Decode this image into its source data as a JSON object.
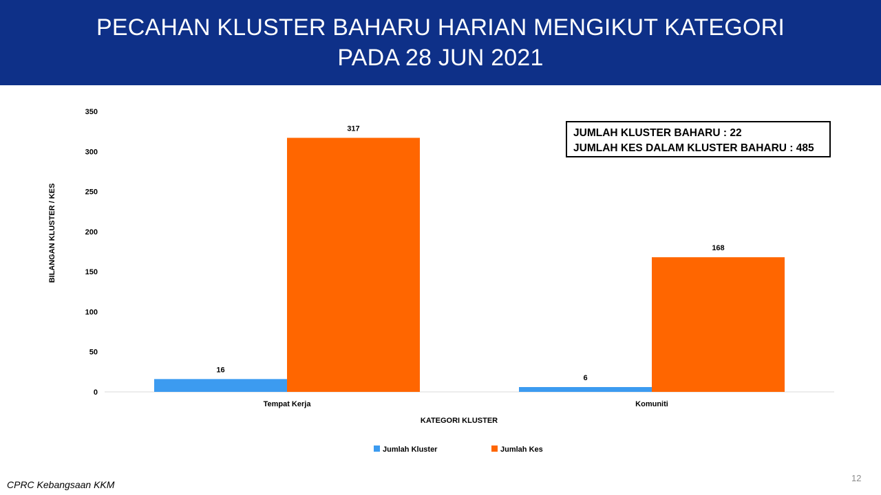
{
  "slide": {
    "title_line1": "PECAHAN KLUSTER BAHARU HARIAN MENGIKUT KATEGORI",
    "title_line2": "PADA 28 JUN 2021",
    "info_line1": "JUMLAH KLUSTER BAHARU : 22",
    "info_line2": "JUMLAH KES DALAM KLUSTER BAHARU : 485",
    "source": "CPRC Kebangsaan KKM",
    "page_number": "12",
    "header_color": "#0e3088"
  },
  "chart_data": {
    "type": "bar",
    "categories": [
      "Tempat Kerja",
      "Komuniti"
    ],
    "series": [
      {
        "name": "Jumlah Kluster",
        "values": [
          16,
          6
        ],
        "color": "#3c9bf0"
      },
      {
        "name": "Jumlah Kes",
        "values": [
          317,
          168
        ],
        "color": "#ff6600"
      }
    ],
    "xlabel": "KATEGORI KLUSTER",
    "ylabel": "BILANGAN KLUSTER / KES",
    "ylim": [
      0,
      350
    ],
    "yticks": [
      0,
      50,
      100,
      150,
      200,
      250,
      300,
      350
    ],
    "grid": false,
    "legend_position": "bottom",
    "data_labels": true
  }
}
